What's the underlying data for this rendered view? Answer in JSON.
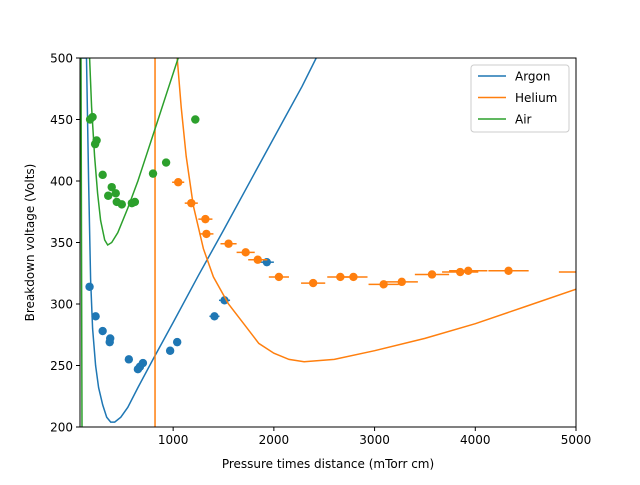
{
  "chart_data": {
    "type": "scatter",
    "xlabel": "Pressure times distance (mTorr cm)",
    "ylabel": "Breakdown voltage (Volts)",
    "xlim": [
      75,
      5000
    ],
    "ylim": [
      200,
      500
    ],
    "xticks": [
      1000,
      2000,
      3000,
      4000,
      5000
    ],
    "yticks": [
      200,
      250,
      300,
      350,
      400,
      450,
      500
    ],
    "grid": false,
    "legend_position": "top-right",
    "series": [
      {
        "name": "Argon",
        "color": "#1f77b4",
        "curve": [
          {
            "x": 75,
            "y": 500
          },
          {
            "x": 140,
            "y": 500
          },
          {
            "x": 160,
            "y": 400
          },
          {
            "x": 180,
            "y": 320
          },
          {
            "x": 200,
            "y": 280
          },
          {
            "x": 230,
            "y": 250
          },
          {
            "x": 260,
            "y": 232
          },
          {
            "x": 300,
            "y": 218
          },
          {
            "x": 340,
            "y": 208
          },
          {
            "x": 380,
            "y": 204
          },
          {
            "x": 420,
            "y": 204
          },
          {
            "x": 480,
            "y": 208
          },
          {
            "x": 550,
            "y": 216
          },
          {
            "x": 650,
            "y": 232
          },
          {
            "x": 800,
            "y": 255
          },
          {
            "x": 1000,
            "y": 285
          },
          {
            "x": 1250,
            "y": 323
          },
          {
            "x": 1500,
            "y": 360
          },
          {
            "x": 1800,
            "y": 405
          },
          {
            "x": 2100,
            "y": 450
          },
          {
            "x": 2280,
            "y": 477
          },
          {
            "x": 2420,
            "y": 500
          }
        ],
        "points": [
          {
            "x": 170,
            "y": 314,
            "xerr": 14
          },
          {
            "x": 230,
            "y": 290,
            "xerr": 14
          },
          {
            "x": 300,
            "y": 278,
            "xerr": 14
          },
          {
            "x": 370,
            "y": 269,
            "xerr": 14
          },
          {
            "x": 375,
            "y": 272,
            "xerr": 14
          },
          {
            "x": 560,
            "y": 255,
            "xerr": 18
          },
          {
            "x": 650,
            "y": 247,
            "xerr": 18
          },
          {
            "x": 670,
            "y": 249,
            "xerr": 18
          },
          {
            "x": 700,
            "y": 252,
            "xerr": 18
          },
          {
            "x": 970,
            "y": 262,
            "xerr": 30
          },
          {
            "x": 1040,
            "y": 269,
            "xerr": 30
          },
          {
            "x": 1410,
            "y": 290,
            "xerr": 50
          },
          {
            "x": 1510,
            "y": 303,
            "xerr": 55
          },
          {
            "x": 1930,
            "y": 334,
            "xerr": 70
          }
        ]
      },
      {
        "name": "Helium",
        "color": "#ff7f0e",
        "curve": [
          {
            "x": 1040,
            "y": 500
          },
          {
            "x": 1080,
            "y": 460
          },
          {
            "x": 1130,
            "y": 420
          },
          {
            "x": 1200,
            "y": 380
          },
          {
            "x": 1300,
            "y": 345
          },
          {
            "x": 1400,
            "y": 322
          },
          {
            "x": 1550,
            "y": 300
          },
          {
            "x": 1700,
            "y": 284
          },
          {
            "x": 1850,
            "y": 268
          },
          {
            "x": 2000,
            "y": 260
          },
          {
            "x": 2150,
            "y": 255
          },
          {
            "x": 2300,
            "y": 253
          },
          {
            "x": 2600,
            "y": 255
          },
          {
            "x": 3000,
            "y": 262
          },
          {
            "x": 3500,
            "y": 272
          },
          {
            "x": 4000,
            "y": 284
          },
          {
            "x": 4500,
            "y": 298
          },
          {
            "x": 5000,
            "y": 312
          }
        ],
        "asymptote_x": 820,
        "points": [
          {
            "x": 1050,
            "y": 399,
            "xerr": 60
          },
          {
            "x": 1180,
            "y": 382,
            "xerr": 65
          },
          {
            "x": 1320,
            "y": 369,
            "xerr": 70
          },
          {
            "x": 1330,
            "y": 357,
            "xerr": 70
          },
          {
            "x": 1550,
            "y": 349,
            "xerr": 80
          },
          {
            "x": 1720,
            "y": 342,
            "xerr": 90
          },
          {
            "x": 1840,
            "y": 336,
            "xerr": 95
          },
          {
            "x": 2050,
            "y": 322,
            "xerr": 100
          },
          {
            "x": 2390,
            "y": 317,
            "xerr": 120
          },
          {
            "x": 2660,
            "y": 322,
            "xerr": 130
          },
          {
            "x": 2790,
            "y": 322,
            "xerr": 140
          },
          {
            "x": 3090,
            "y": 316,
            "xerr": 150
          },
          {
            "x": 3270,
            "y": 318,
            "xerr": 160
          },
          {
            "x": 3570,
            "y": 324,
            "xerr": 170
          },
          {
            "x": 3850,
            "y": 326,
            "xerr": 180
          },
          {
            "x": 3930,
            "y": 327,
            "xerr": 190
          },
          {
            "x": 4330,
            "y": 327,
            "xerr": 200
          },
          {
            "x": 5050,
            "y": 326,
            "xerr": 220
          }
        ]
      },
      {
        "name": "Air",
        "color": "#2ca02c",
        "curve": [
          {
            "x": 75,
            "y": 500
          },
          {
            "x": 85,
            "y": 500
          },
          {
            "x": 95,
            "y": 200
          }
        ],
        "curve2": [
          {
            "x": 170,
            "y": 500
          },
          {
            "x": 190,
            "y": 460
          },
          {
            "x": 220,
            "y": 420
          },
          {
            "x": 250,
            "y": 390
          },
          {
            "x": 280,
            "y": 368
          },
          {
            "x": 320,
            "y": 352
          },
          {
            "x": 350,
            "y": 348
          },
          {
            "x": 390,
            "y": 350
          },
          {
            "x": 450,
            "y": 358
          },
          {
            "x": 550,
            "y": 378
          },
          {
            "x": 650,
            "y": 400
          },
          {
            "x": 750,
            "y": 425
          },
          {
            "x": 850,
            "y": 450
          },
          {
            "x": 950,
            "y": 475
          },
          {
            "x": 1050,
            "y": 500
          }
        ],
        "points": [
          {
            "x": 175,
            "y": 450,
            "xerr": 14
          },
          {
            "x": 200,
            "y": 452,
            "xerr": 14
          },
          {
            "x": 225,
            "y": 430,
            "xerr": 14
          },
          {
            "x": 240,
            "y": 433,
            "xerr": 14
          },
          {
            "x": 300,
            "y": 405,
            "xerr": 14
          },
          {
            "x": 355,
            "y": 388,
            "xerr": 16
          },
          {
            "x": 390,
            "y": 395,
            "xerr": 16
          },
          {
            "x": 430,
            "y": 390,
            "xerr": 16
          },
          {
            "x": 440,
            "y": 383,
            "xerr": 16
          },
          {
            "x": 490,
            "y": 381,
            "xerr": 16
          },
          {
            "x": 590,
            "y": 382,
            "xerr": 18
          },
          {
            "x": 620,
            "y": 383,
            "xerr": 18
          },
          {
            "x": 800,
            "y": 406,
            "xerr": 30
          },
          {
            "x": 930,
            "y": 415,
            "xerr": 30
          },
          {
            "x": 1220,
            "y": 450,
            "xerr": 40
          }
        ]
      }
    ]
  }
}
